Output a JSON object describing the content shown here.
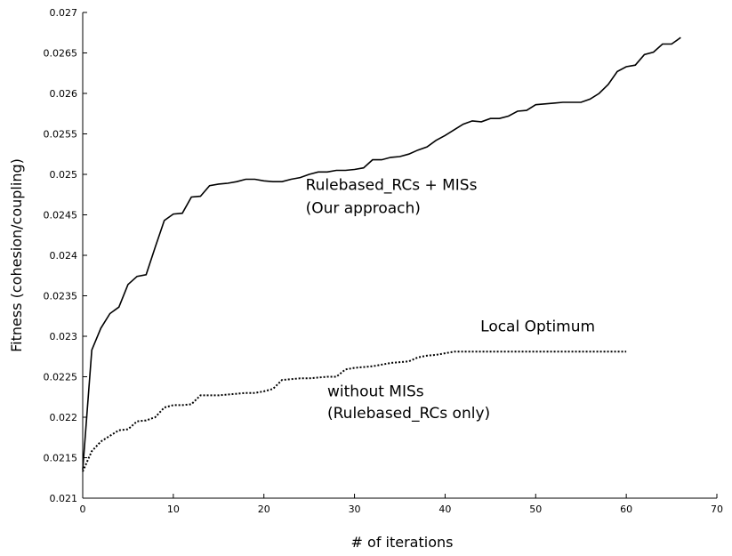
{
  "chart_data": {
    "type": "line",
    "xlabel": "# of iterations",
    "ylabel": "Fitness (cohesion/coupling)",
    "xlim": [
      0,
      70
    ],
    "ylim": [
      0.021,
      0.027
    ],
    "x_ticks": [
      "0",
      "10",
      "20",
      "30",
      "40",
      "50",
      "60",
      "70"
    ],
    "y_ticks": [
      "0.021",
      "0.0215",
      "0.022",
      "0.0225",
      "0.023",
      "0.0235",
      "0.024",
      "0.0245",
      "0.025",
      "0.0255",
      "0.026",
      "0.0265",
      "0.027"
    ],
    "grid": false,
    "series": [
      {
        "style": "solid",
        "x": [
          0,
          1,
          2,
          3,
          4,
          5,
          6,
          7,
          8,
          9,
          10,
          11,
          12,
          13,
          14,
          15,
          16,
          17,
          18,
          19,
          20,
          21,
          22,
          23,
          24,
          25,
          26,
          27,
          28,
          29,
          30,
          31,
          32,
          33,
          34,
          35,
          36,
          37,
          38,
          39,
          40,
          41,
          42,
          43,
          44,
          45,
          46,
          47,
          48,
          49,
          50,
          51,
          52,
          53,
          54,
          55,
          56,
          57,
          58,
          59,
          60,
          61,
          62,
          63,
          64,
          65,
          66
        ],
        "y": [
          0.02135,
          0.02283,
          0.0231,
          0.02328,
          0.02336,
          0.02364,
          0.02374,
          0.02376,
          0.0241,
          0.02443,
          0.02451,
          0.02452,
          0.02472,
          0.02473,
          0.02486,
          0.02488,
          0.02489,
          0.02491,
          0.02494,
          0.02494,
          0.02492,
          0.02491,
          0.02491,
          0.02494,
          0.02496,
          0.025,
          0.02503,
          0.02503,
          0.02505,
          0.02505,
          0.02506,
          0.02508,
          0.02518,
          0.02518,
          0.02521,
          0.02522,
          0.02525,
          0.0253,
          0.02534,
          0.02542,
          0.02548,
          0.02555,
          0.02562,
          0.02566,
          0.02565,
          0.02569,
          0.02569,
          0.02572,
          0.02578,
          0.02579,
          0.02586,
          0.02587,
          0.02588,
          0.02589,
          0.02589,
          0.02589,
          0.02593,
          0.026,
          0.02611,
          0.02627,
          0.02633,
          0.02635,
          0.02648,
          0.02651,
          0.02661,
          0.02661,
          0.02669
        ]
      },
      {
        "style": "dotted",
        "x": [
          0,
          1,
          2,
          3,
          4,
          5,
          6,
          7,
          8,
          9,
          10,
          11,
          12,
          13,
          14,
          15,
          16,
          17,
          18,
          19,
          20,
          21,
          22,
          23,
          24,
          25,
          26,
          27,
          28,
          29,
          30,
          31,
          32,
          33,
          34,
          35,
          36,
          37,
          38,
          39,
          40,
          41,
          42,
          43,
          44,
          45,
          46,
          47,
          48,
          49,
          50,
          51,
          52,
          53,
          54,
          55,
          56,
          57,
          58,
          59,
          60
        ],
        "y": [
          0.02133,
          0.02158,
          0.0217,
          0.02177,
          0.02184,
          0.02185,
          0.02195,
          0.02196,
          0.022,
          0.02212,
          0.02215,
          0.02215,
          0.02216,
          0.02227,
          0.02227,
          0.02227,
          0.02228,
          0.02229,
          0.0223,
          0.0223,
          0.02232,
          0.02235,
          0.02246,
          0.02247,
          0.02248,
          0.02248,
          0.02249,
          0.0225,
          0.0225,
          0.02259,
          0.02261,
          0.02262,
          0.02263,
          0.02265,
          0.02267,
          0.02268,
          0.02269,
          0.02274,
          0.02276,
          0.02277,
          0.02279,
          0.02281,
          0.02281,
          0.02281,
          0.02281,
          0.02281,
          0.02281,
          0.02281,
          0.02281,
          0.02281,
          0.02281,
          0.02281,
          0.02281,
          0.02281,
          0.02281,
          0.02281,
          0.02281,
          0.02281,
          0.02281,
          0.02281,
          0.02281
        ]
      }
    ],
    "annotations": [
      {
        "id": "ours_1",
        "text": "Rulebased_RCs + MISs",
        "x": 24.6,
        "y": 0.02481
      },
      {
        "id": "ours_2",
        "text": "(Our approach)",
        "x": 24.6,
        "y": 0.02452
      },
      {
        "id": "local_opt",
        "text": "Local Optimum",
        "x": 43.9,
        "y": 0.02306
      },
      {
        "id": "without_1",
        "text": "without MISs",
        "x": 27.0,
        "y": 0.02226
      },
      {
        "id": "without_2",
        "text": "(Rulebased_RCs only)",
        "x": 27.0,
        "y": 0.02199
      }
    ]
  }
}
